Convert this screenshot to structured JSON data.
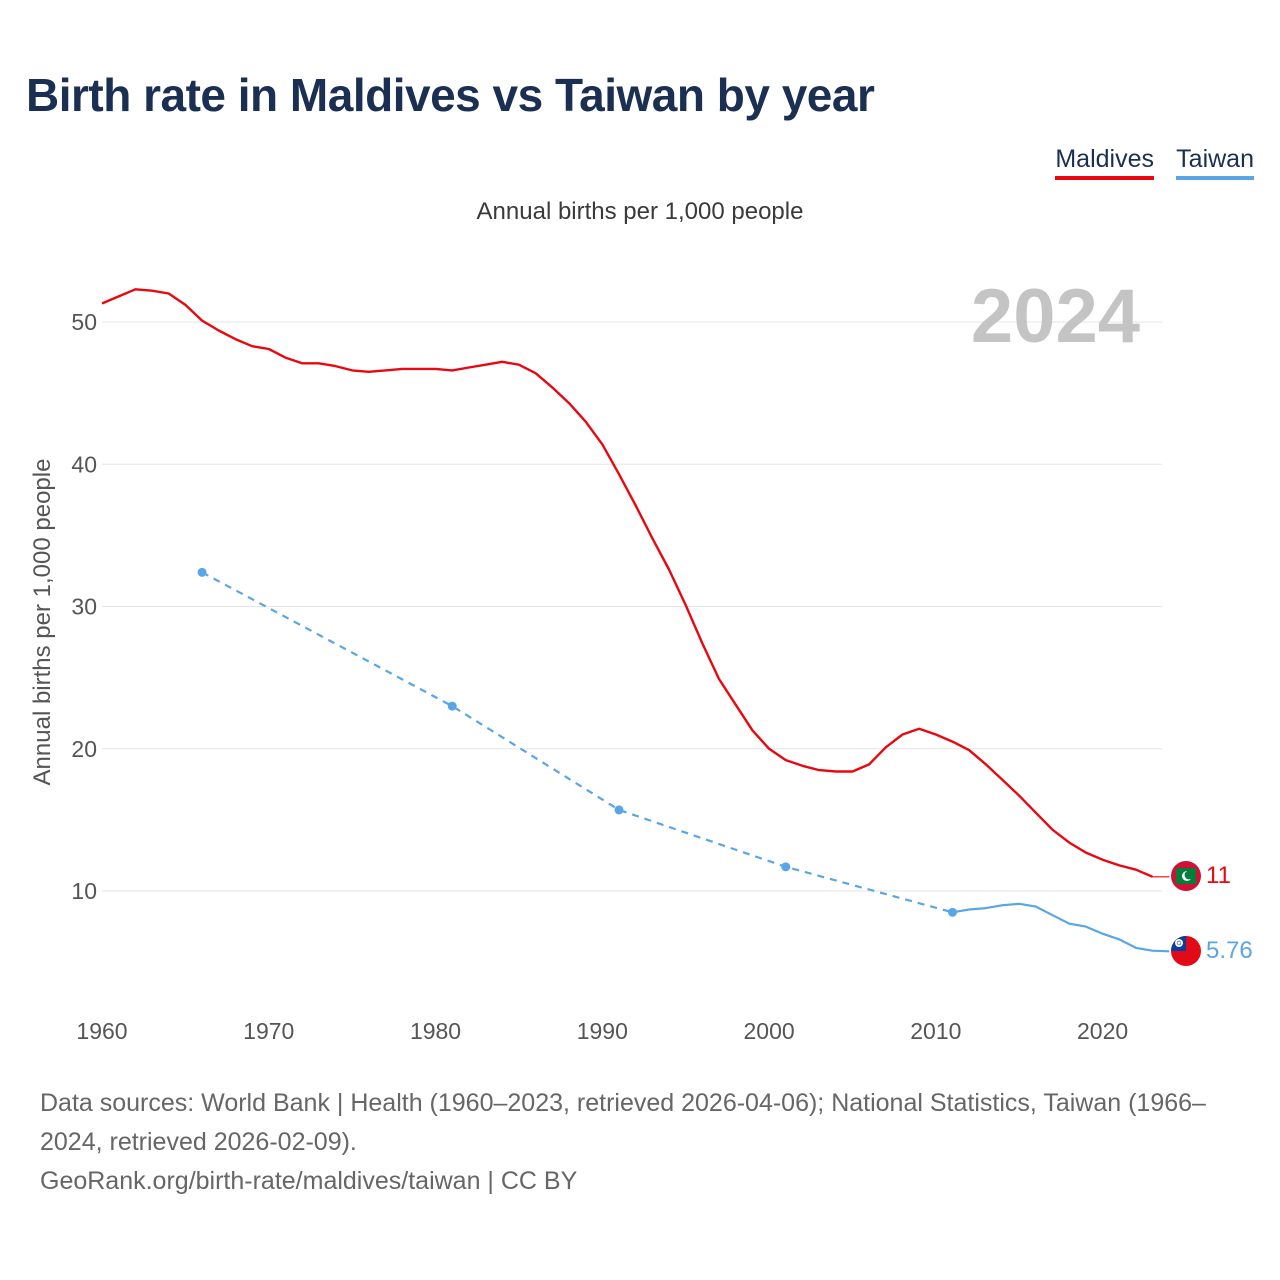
{
  "title": "Birth rate in Maldives vs Taiwan by year",
  "subtitle": "Annual births per 1,000 people",
  "legend": [
    {
      "label": "Maldives",
      "color": "#e8080f"
    },
    {
      "label": "Taiwan",
      "color": "#5aa5e6"
    }
  ],
  "year_watermark": "2024",
  "footer": {
    "source": "Data sources: World Bank | Health (1960–2023, retrieved 2026-04-06); National Statistics, Taiwan (1966–2024, retrieved 2026-02-09).",
    "url": "GeoRank.org/birth-rate/maldives/taiwan | CC BY"
  },
  "chart_data": {
    "type": "line",
    "title": "Birth rate in Maldives vs Taiwan by year",
    "xlabel": "",
    "ylabel": "Annual births per 1,000 people",
    "xlim": [
      1960,
      2025
    ],
    "ylim": [
      3,
      55
    ],
    "x_ticks": [
      1960,
      1970,
      1980,
      1990,
      2000,
      2010,
      2020
    ],
    "y_ticks": [
      10,
      20,
      30,
      40,
      50
    ],
    "grid": true,
    "legend_position": "top-right",
    "series": [
      {
        "name": "Maldives",
        "color": "#e8080f",
        "style": "solid",
        "end_label": "11",
        "flag": "maldives",
        "points": [
          [
            1960,
            51.3
          ],
          [
            1961,
            51.8
          ],
          [
            1962,
            52.3
          ],
          [
            1963,
            52.2
          ],
          [
            1964,
            52.0
          ],
          [
            1965,
            51.2
          ],
          [
            1966,
            50.1
          ],
          [
            1967,
            49.4
          ],
          [
            1968,
            48.8
          ],
          [
            1969,
            48.3
          ],
          [
            1970,
            48.1
          ],
          [
            1971,
            47.5
          ],
          [
            1972,
            47.1
          ],
          [
            1973,
            47.1
          ],
          [
            1974,
            46.9
          ],
          [
            1975,
            46.6
          ],
          [
            1976,
            46.5
          ],
          [
            1977,
            46.6
          ],
          [
            1978,
            46.7
          ],
          [
            1979,
            46.7
          ],
          [
            1980,
            46.7
          ],
          [
            1981,
            46.6
          ],
          [
            1982,
            46.8
          ],
          [
            1983,
            47.0
          ],
          [
            1984,
            47.2
          ],
          [
            1985,
            47.0
          ],
          [
            1986,
            46.4
          ],
          [
            1987,
            45.4
          ],
          [
            1988,
            44.3
          ],
          [
            1989,
            43.0
          ],
          [
            1990,
            41.4
          ],
          [
            1991,
            39.3
          ],
          [
            1992,
            37.1
          ],
          [
            1993,
            34.8
          ],
          [
            1994,
            32.6
          ],
          [
            1995,
            30.1
          ],
          [
            1996,
            27.4
          ],
          [
            1997,
            24.9
          ],
          [
            1998,
            23.1
          ],
          [
            1999,
            21.3
          ],
          [
            2000,
            20.0
          ],
          [
            2001,
            19.2
          ],
          [
            2002,
            18.8
          ],
          [
            2003,
            18.5
          ],
          [
            2004,
            18.4
          ],
          [
            2005,
            18.4
          ],
          [
            2006,
            18.9
          ],
          [
            2007,
            20.1
          ],
          [
            2008,
            21.0
          ],
          [
            2009,
            21.4
          ],
          [
            2010,
            21.0
          ],
          [
            2011,
            20.5
          ],
          [
            2012,
            19.9
          ],
          [
            2013,
            18.9
          ],
          [
            2014,
            17.8
          ],
          [
            2015,
            16.7
          ],
          [
            2016,
            15.5
          ],
          [
            2017,
            14.3
          ],
          [
            2018,
            13.4
          ],
          [
            2019,
            12.7
          ],
          [
            2020,
            12.2
          ],
          [
            2021,
            11.8
          ],
          [
            2022,
            11.5
          ],
          [
            2023,
            11.0
          ],
          [
            2024,
            11.0
          ]
        ]
      },
      {
        "name": "Taiwan",
        "color": "#5aa5e6",
        "style": "mixed",
        "end_label": "5.76",
        "flag": "taiwan",
        "points": [
          [
            1966,
            32.4
          ],
          [
            1981,
            23.0
          ],
          [
            1991,
            15.7
          ],
          [
            2001,
            11.7
          ],
          [
            2011,
            8.5
          ],
          [
            2012,
            8.7
          ],
          [
            2013,
            8.8
          ],
          [
            2014,
            9.0
          ],
          [
            2015,
            9.1
          ],
          [
            2016,
            8.9
          ],
          [
            2017,
            8.3
          ],
          [
            2018,
            7.7
          ],
          [
            2019,
            7.5
          ],
          [
            2020,
            7.0
          ],
          [
            2021,
            6.6
          ],
          [
            2022,
            6.0
          ],
          [
            2023,
            5.8
          ],
          [
            2024,
            5.76
          ]
        ],
        "dashed_until": 2011,
        "marker_years": [
          1966,
          1981,
          1991,
          2001,
          2011
        ]
      }
    ]
  }
}
